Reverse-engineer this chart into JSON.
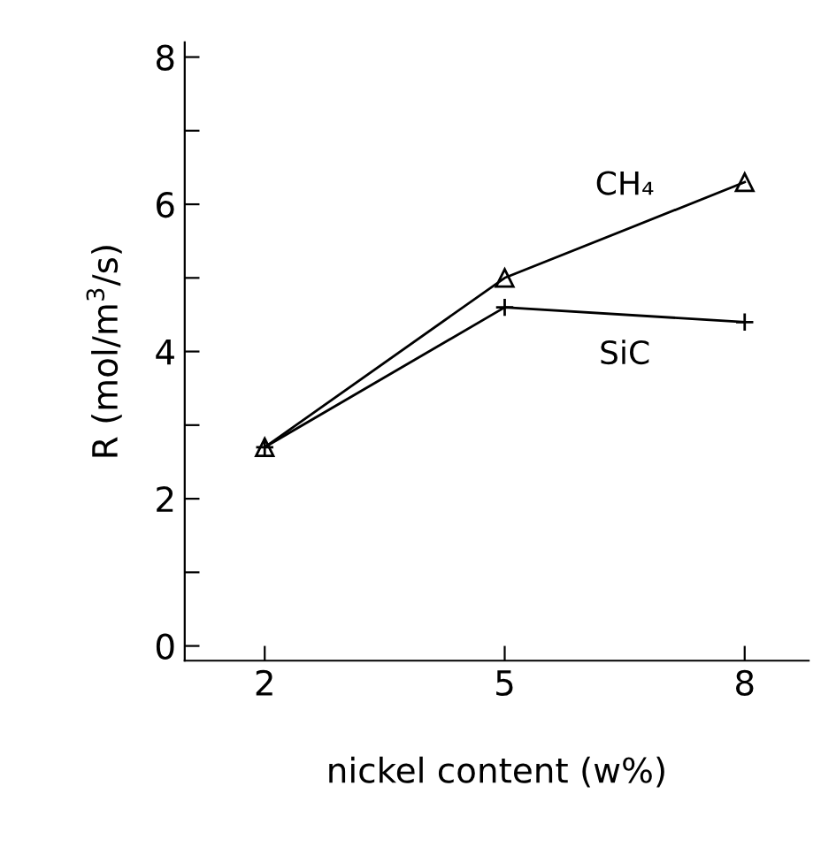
{
  "chart_data": {
    "type": "line",
    "xlabel": "nickel content (w%)",
    "ylabel": "R (mol/m$^{3}$/s)",
    "x": [
      2,
      5,
      8
    ],
    "series": [
      {
        "name": "CH₄",
        "color": "#000000",
        "marker": "triangle",
        "values": [
          2.7,
          5.0,
          6.3
        ]
      },
      {
        "name": "SiC",
        "color": "#000000",
        "marker": "cross",
        "values": [
          2.7,
          4.6,
          4.4
        ]
      }
    ],
    "xlim": [
      1,
      8.8
    ],
    "xticks": [
      2,
      5,
      8
    ],
    "ylim": [
      -0.2,
      8.2
    ],
    "yticks": [
      0,
      {
        "value": 1,
        "label": null
      },
      2,
      {
        "value": 3,
        "label": null
      },
      4,
      {
        "value": 5,
        "label": null
      },
      6,
      {
        "value": 7,
        "label": null
      },
      8
    ],
    "grid": false,
    "legend": false,
    "line_style": "solid"
  }
}
